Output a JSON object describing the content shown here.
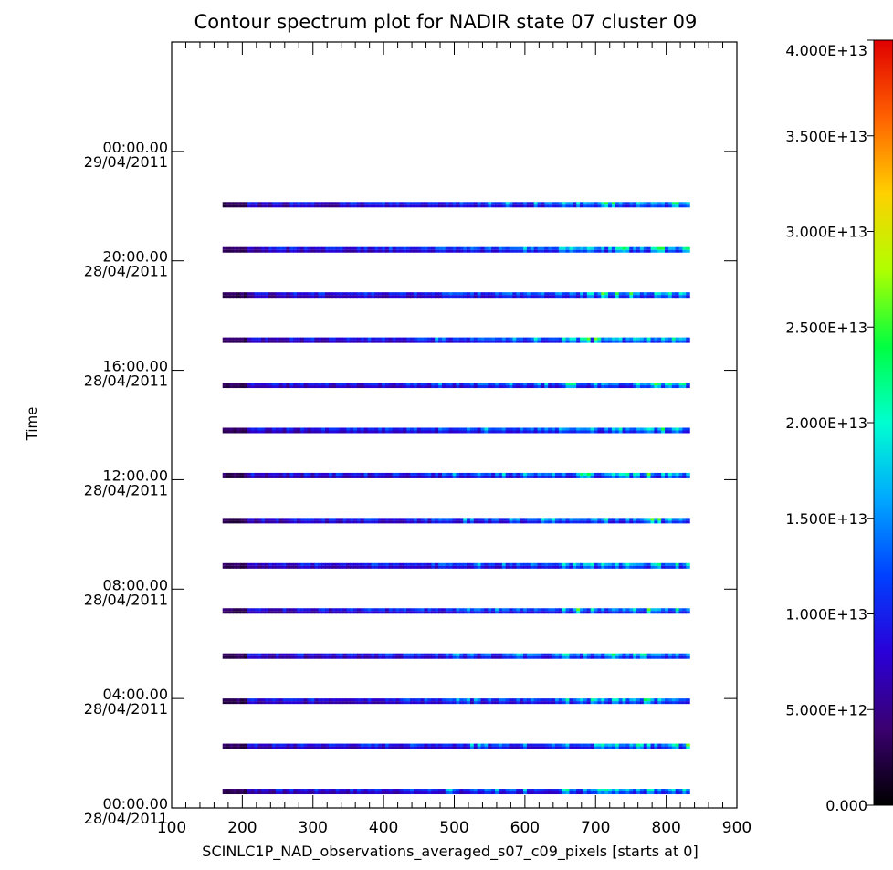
{
  "chart_data": {
    "type": "heatmap",
    "title": "Contour spectrum plot for NADIR state 07 cluster 09",
    "xlabel": "SCINLC1P_NAD_observations_averaged_s07_c09_pixels [starts at 0]",
    "ylabel": "Time",
    "xlim": [
      100,
      900
    ],
    "x_ticks": [
      100,
      200,
      300,
      400,
      500,
      600,
      700,
      800,
      900
    ],
    "x_tick_labels": [
      "100",
      "200",
      "300",
      "400",
      "500",
      "600",
      "700",
      "800",
      "900"
    ],
    "ylim_hours": [
      0,
      28
    ],
    "y_ticks": [
      {
        "hours": 0,
        "time": "00:00.00",
        "date": "28/04/2011"
      },
      {
        "hours": 4,
        "time": "04:00.00",
        "date": "28/04/2011"
      },
      {
        "hours": 8,
        "time": "08:00.00",
        "date": "28/04/2011"
      },
      {
        "hours": 12,
        "time": "12:00.00",
        "date": "28/04/2011"
      },
      {
        "hours": 16,
        "time": "16:00.00",
        "date": "28/04/2011"
      },
      {
        "hours": 20,
        "time": "20:00.00",
        "date": "28/04/2011"
      },
      {
        "hours": 24,
        "time": "00:00.00",
        "date": "29/04/2011"
      }
    ],
    "pixel_range": [
      172,
      833
    ],
    "observation_times_hours": [
      0.6,
      2.25,
      3.9,
      5.55,
      7.2,
      8.85,
      10.5,
      12.15,
      13.8,
      15.45,
      17.1,
      18.75,
      20.4,
      22.05
    ],
    "colorbar": {
      "min": 0,
      "max": 40000000000000.0,
      "tick_values": [
        0,
        5000000000000.0,
        10000000000000.0,
        15000000000000.0,
        20000000000000.0,
        25000000000000.0,
        30000000000000.0,
        35000000000000.0,
        40000000000000.0
      ],
      "tick_labels": [
        "0.000",
        "5.000E+12",
        "1.000E+13",
        "1.500E+13",
        "2.000E+13",
        "2.500E+13",
        "3.000E+13",
        "3.500E+13",
        "4.000E+13"
      ],
      "colors": [
        "#000000",
        "#3a0070",
        "#2a00d8",
        "#0040ff",
        "#00a8ff",
        "#00ffd0",
        "#00ff40",
        "#b0ff00",
        "#ffd000",
        "#ff6000",
        "#e00000"
      ]
    },
    "grid": false,
    "legend": "colorbar-right"
  }
}
